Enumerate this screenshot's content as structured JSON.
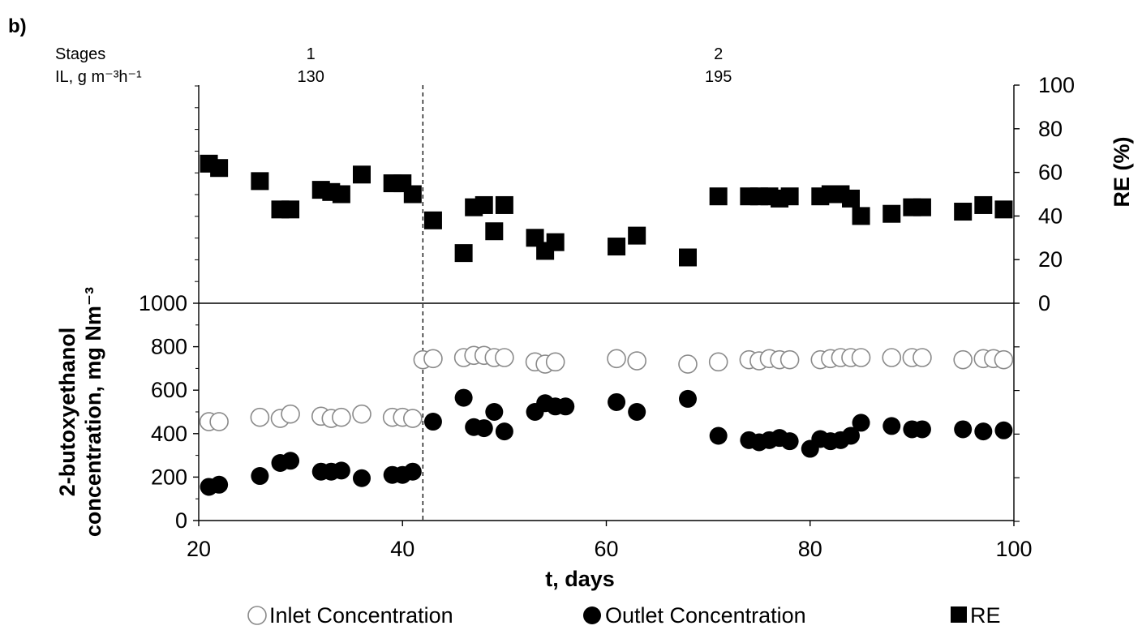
{
  "chart_data": {
    "type": "scatter",
    "panel_label": "b)",
    "header": {
      "row1_label": "Stages",
      "row2_label": "IL, g m⁻³h⁻¹",
      "stages": [
        {
          "stage": "1",
          "il": "130",
          "x_center": 31
        },
        {
          "stage": "2",
          "il": "195",
          "x_center": 71
        }
      ]
    },
    "stage_divider_x": 42,
    "xlabel": "t, days",
    "xlim": [
      20,
      100
    ],
    "xticks": [
      20,
      40,
      60,
      80,
      100
    ],
    "ylabel_line1": "2-butoxyethanol",
    "ylabel_line2": "concentration, mg Nm⁻³",
    "ylim": [
      0,
      1000
    ],
    "yticks": [
      0,
      200,
      400,
      600,
      800,
      1000
    ],
    "y2label": "RE (%)",
    "y2lim": [
      0,
      100
    ],
    "y2ticks": [
      0,
      20,
      40,
      60,
      80,
      100
    ],
    "legend_position": "bottom",
    "series": [
      {
        "name": "Inlet Concentration",
        "marker": "open-circle",
        "color": "#000000",
        "axis": "left",
        "x": [
          21,
          22,
          26,
          28,
          29,
          32,
          33,
          34,
          36,
          39,
          40,
          41,
          42,
          43,
          46,
          47,
          48,
          49,
          50,
          53,
          54,
          55,
          61,
          63,
          68,
          71,
          74,
          75,
          76,
          77,
          78,
          81,
          82,
          83,
          84,
          85,
          88,
          90,
          91,
          95,
          97,
          98,
          99
        ],
        "y": [
          455,
          455,
          475,
          470,
          490,
          480,
          470,
          475,
          490,
          475,
          475,
          470,
          740,
          745,
          750,
          760,
          760,
          750,
          750,
          730,
          720,
          730,
          745,
          735,
          720,
          730,
          740,
          735,
          745,
          740,
          740,
          740,
          745,
          750,
          750,
          750,
          750,
          750,
          750,
          740,
          745,
          745,
          740
        ]
      },
      {
        "name": "Outlet Concentration",
        "marker": "filled-circle",
        "color": "#000000",
        "axis": "left",
        "x": [
          21,
          22,
          26,
          28,
          29,
          32,
          33,
          34,
          36,
          39,
          40,
          41,
          43,
          46,
          47,
          48,
          49,
          50,
          53,
          54,
          55,
          56,
          61,
          63,
          68,
          71,
          74,
          75,
          76,
          77,
          78,
          80,
          81,
          82,
          83,
          84,
          85,
          88,
          90,
          91,
          95,
          97,
          99
        ],
        "y": [
          155,
          165,
          205,
          265,
          275,
          225,
          225,
          230,
          195,
          210,
          210,
          225,
          455,
          565,
          430,
          425,
          500,
          410,
          500,
          540,
          525,
          525,
          545,
          500,
          560,
          390,
          370,
          360,
          370,
          380,
          365,
          330,
          375,
          365,
          370,
          390,
          450,
          435,
          420,
          420,
          420,
          410,
          415
        ]
      },
      {
        "name": "RE",
        "marker": "filled-square",
        "color": "#000000",
        "axis": "right",
        "x": [
          21,
          22,
          26,
          28,
          29,
          32,
          33,
          34,
          36,
          39,
          40,
          41,
          43,
          46,
          47,
          48,
          49,
          50,
          53,
          54,
          55,
          61,
          63,
          68,
          71,
          74,
          75,
          76,
          77,
          78,
          81,
          82,
          83,
          84,
          85,
          88,
          90,
          91,
          95,
          97,
          99
        ],
        "y": [
          64,
          62,
          56,
          43,
          43,
          52,
          51,
          50,
          59,
          55,
          55,
          50,
          38,
          23,
          44,
          45,
          33,
          45,
          30,
          24,
          28,
          26,
          31,
          21,
          49,
          49,
          49,
          49,
          48,
          49,
          49,
          50,
          50,
          48,
          40,
          41,
          44,
          44,
          42,
          45,
          43
        ]
      }
    ]
  }
}
